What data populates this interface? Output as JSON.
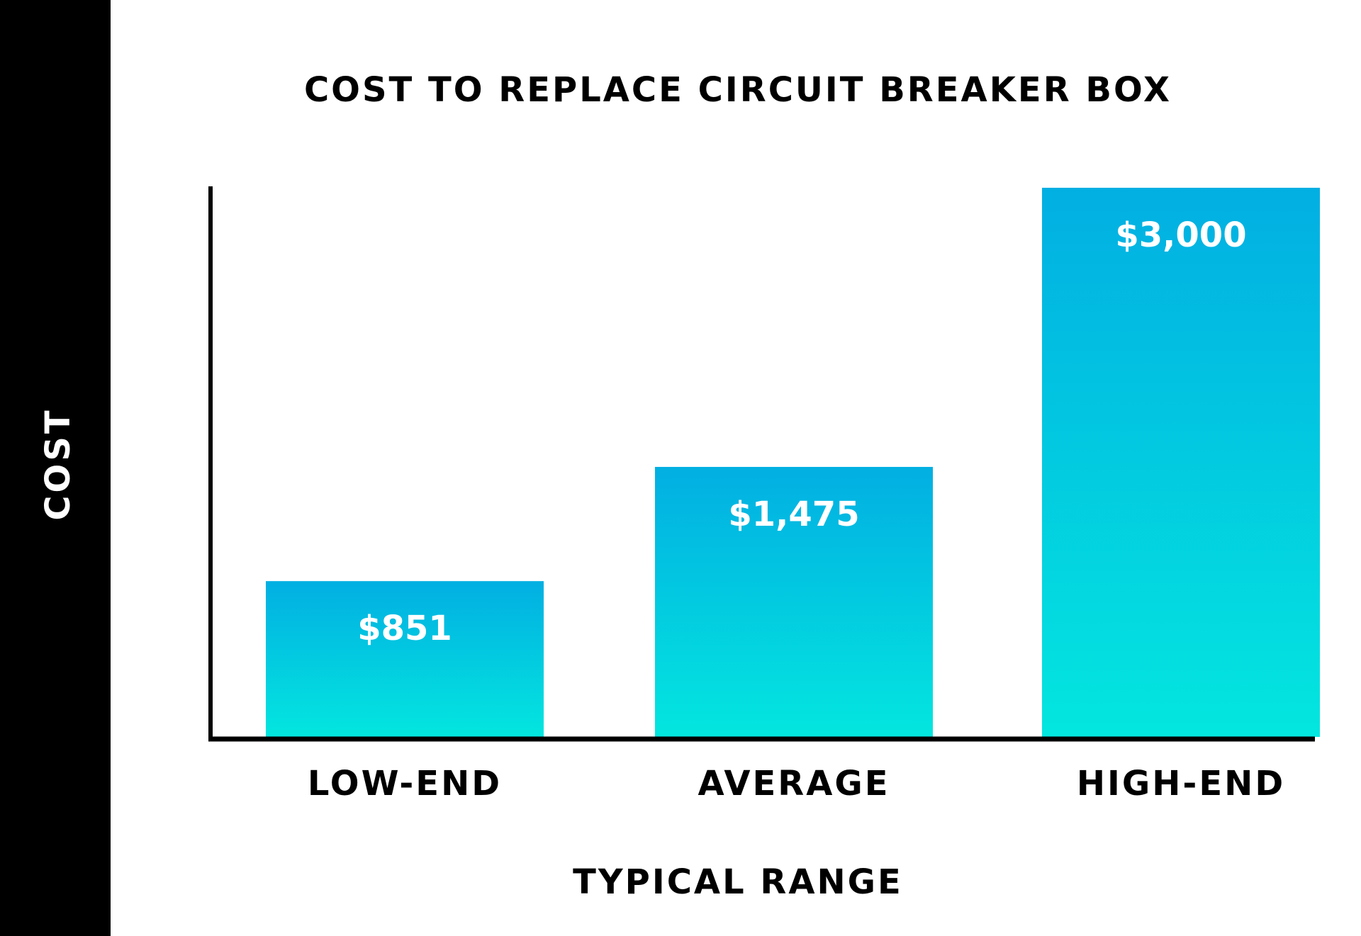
{
  "chart_data": {
    "type": "bar",
    "title": "COST TO REPLACE CIRCUIT BREAKER BOX",
    "xlabel": "TYPICAL RANGE",
    "ylabel": "COST",
    "categories": [
      "LOW-END",
      "AVERAGE",
      "HIGH-END"
    ],
    "values": [
      851,
      1475,
      3000
    ],
    "value_labels": [
      "$851",
      "$1,475",
      "$3,000"
    ],
    "ylim": [
      0,
      3000
    ],
    "grid": false,
    "colors": {
      "bar_top": "#02afe2",
      "bar_bottom": "#03e6df",
      "side_band": "#000000",
      "axis": "#000000",
      "value_text": "#ffffff"
    }
  }
}
